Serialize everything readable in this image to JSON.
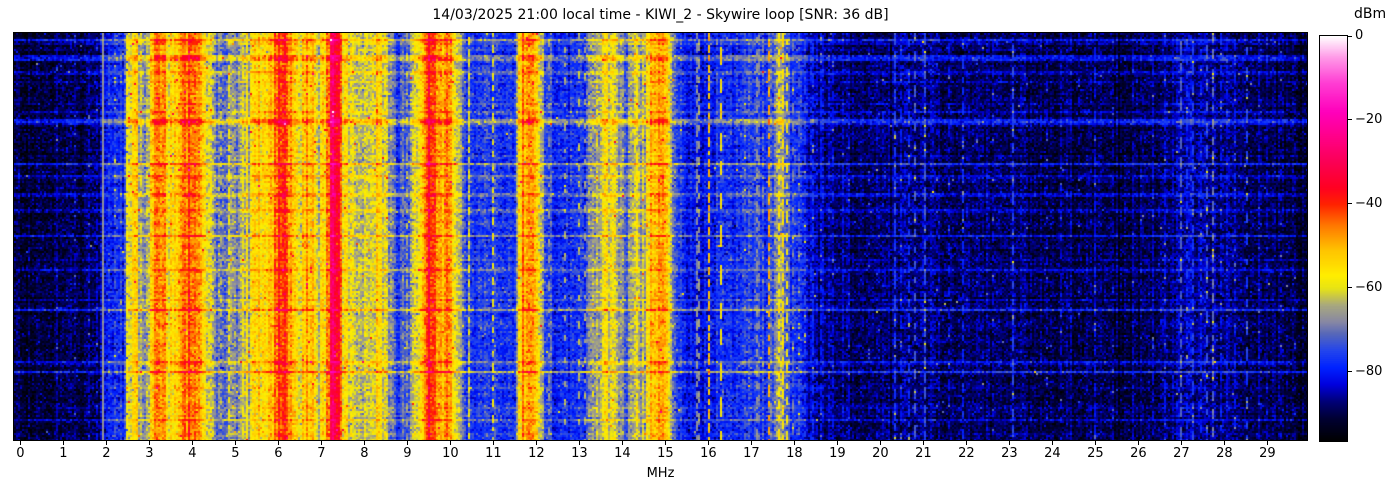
{
  "chart_data": {
    "type": "heatmap",
    "subtype": "radio-spectrogram-waterfall",
    "title": "14/03/2025 21:00 local time - KIWI_2 - Skywire loop [SNR: 36 dB]",
    "xlabel": "MHz",
    "x_ticks": [
      0,
      1,
      2,
      3,
      4,
      5,
      6,
      7,
      8,
      9,
      10,
      11,
      12,
      13,
      14,
      15,
      16,
      17,
      18,
      19,
      20,
      21,
      22,
      23,
      24,
      25,
      26,
      27,
      28,
      29
    ],
    "x_range": [
      -0.15,
      29.92
    ],
    "y_ticks": [],
    "colorbar": {
      "label": "dBm",
      "ticks": [
        0,
        -20,
        -40,
        -60,
        -80
      ],
      "range": [
        -96.5,
        0
      ]
    },
    "colormap_stops": [
      [
        -96.5,
        "#000000"
      ],
      [
        -91,
        "#000033"
      ],
      [
        -87,
        "#000077"
      ],
      [
        -83,
        "#0000dd"
      ],
      [
        -79,
        "#0022ff"
      ],
      [
        -75,
        "#2244ee"
      ],
      [
        -71,
        "#5566bb"
      ],
      [
        -68,
        "#8888a3"
      ],
      [
        -64,
        "#a8a87e"
      ],
      [
        -60,
        "#e8e414"
      ],
      [
        -57,
        "#ffee00"
      ],
      [
        -51,
        "#ffc400"
      ],
      [
        -45,
        "#ff7700"
      ],
      [
        -40,
        "#ff2200"
      ],
      [
        -36,
        "#ff0022"
      ],
      [
        -30,
        "#fb0055"
      ],
      [
        -24,
        "#ff0088"
      ],
      [
        -18,
        "#ff00bb"
      ],
      [
        -11,
        "#ff3fd4"
      ],
      [
        -5,
        "#ff9ae8"
      ],
      [
        0,
        "#ffffff"
      ]
    ],
    "seed": 20250314,
    "noise": {
      "cell_sigma_db": 3.2,
      "column_sigma_active_db": 2.8,
      "column_sigma_quiet_db": 1.5,
      "row_jitter_sigma_db": 1.2,
      "row_burst_probability": 0.085,
      "row_burst_db": [
        4,
        12
      ],
      "speckle_probability_active": 0.006,
      "speckle_probability_quiet": 0.0015,
      "speckle_db": [
        10,
        24
      ]
    },
    "band_profile": [
      [
        0.0,
        -90
      ],
      [
        0.3,
        -91
      ],
      [
        0.8,
        -90
      ],
      [
        1.4,
        -90
      ],
      [
        1.75,
        -89
      ],
      [
        1.88,
        -84
      ],
      [
        1.95,
        -80
      ],
      [
        2.1,
        -79
      ],
      [
        2.4,
        -78
      ],
      [
        2.5,
        -62
      ],
      [
        2.58,
        -57
      ],
      [
        2.7,
        -54
      ],
      [
        2.8,
        -64
      ],
      [
        2.9,
        -70
      ],
      [
        3.0,
        -58
      ],
      [
        3.08,
        -52
      ],
      [
        3.18,
        -44
      ],
      [
        3.3,
        -48
      ],
      [
        3.42,
        -54
      ],
      [
        3.55,
        -57
      ],
      [
        3.65,
        -50
      ],
      [
        3.75,
        -47
      ],
      [
        3.88,
        -42
      ],
      [
        4.0,
        -45
      ],
      [
        4.1,
        -43
      ],
      [
        4.22,
        -52
      ],
      [
        4.35,
        -60
      ],
      [
        4.5,
        -70
      ],
      [
        4.7,
        -72
      ],
      [
        4.9,
        -68
      ],
      [
        5.05,
        -70
      ],
      [
        5.18,
        -60
      ],
      [
        5.35,
        -57
      ],
      [
        5.55,
        -56
      ],
      [
        5.75,
        -56
      ],
      [
        5.9,
        -48
      ],
      [
        6.0,
        -39
      ],
      [
        6.12,
        -40
      ],
      [
        6.22,
        -47
      ],
      [
        6.35,
        -50
      ],
      [
        6.5,
        -58
      ],
      [
        6.65,
        -55
      ],
      [
        6.8,
        -56
      ],
      [
        6.95,
        -60
      ],
      [
        7.05,
        -56
      ],
      [
        7.15,
        -46
      ],
      [
        7.22,
        -34
      ],
      [
        7.32,
        -31
      ],
      [
        7.42,
        -40
      ],
      [
        7.5,
        -52
      ],
      [
        7.6,
        -60
      ],
      [
        7.72,
        -58
      ],
      [
        7.85,
        -62
      ],
      [
        8.0,
        -66
      ],
      [
        8.15,
        -60
      ],
      [
        8.3,
        -56
      ],
      [
        8.45,
        -60
      ],
      [
        8.6,
        -70
      ],
      [
        8.75,
        -74
      ],
      [
        8.9,
        -72
      ],
      [
        9.05,
        -70
      ],
      [
        9.18,
        -62
      ],
      [
        9.3,
        -55
      ],
      [
        9.4,
        -45
      ],
      [
        9.5,
        -33
      ],
      [
        9.6,
        -42
      ],
      [
        9.7,
        -44
      ],
      [
        9.8,
        -48
      ],
      [
        9.9,
        -44
      ],
      [
        9.98,
        -50
      ],
      [
        10.08,
        -56
      ],
      [
        10.18,
        -62
      ],
      [
        10.35,
        -74
      ],
      [
        10.6,
        -77
      ],
      [
        10.9,
        -75
      ],
      [
        11.2,
        -78
      ],
      [
        11.45,
        -76
      ],
      [
        11.58,
        -60
      ],
      [
        11.68,
        -48
      ],
      [
        11.8,
        -44
      ],
      [
        11.92,
        -52
      ],
      [
        12.02,
        -56
      ],
      [
        12.15,
        -70
      ],
      [
        12.4,
        -79
      ],
      [
        12.7,
        -78
      ],
      [
        13.0,
        -77
      ],
      [
        13.25,
        -72
      ],
      [
        13.4,
        -64
      ],
      [
        13.55,
        -58
      ],
      [
        13.68,
        -56
      ],
      [
        13.8,
        -60
      ],
      [
        13.95,
        -68
      ],
      [
        14.1,
        -72
      ],
      [
        14.25,
        -62
      ],
      [
        14.4,
        -66
      ],
      [
        14.55,
        -58
      ],
      [
        14.68,
        -50
      ],
      [
        14.8,
        -52
      ],
      [
        14.95,
        -48
      ],
      [
        15.05,
        -56
      ],
      [
        15.2,
        -72
      ],
      [
        15.45,
        -80
      ],
      [
        15.7,
        -82
      ],
      [
        15.95,
        -80
      ],
      [
        16.2,
        -79
      ],
      [
        16.45,
        -78
      ],
      [
        16.7,
        -77
      ],
      [
        16.95,
        -76
      ],
      [
        17.2,
        -77
      ],
      [
        17.42,
        -72
      ],
      [
        17.6,
        -68
      ],
      [
        17.75,
        -70
      ],
      [
        17.95,
        -76
      ],
      [
        18.15,
        -79
      ],
      [
        18.4,
        -84
      ],
      [
        18.7,
        -86
      ],
      [
        19.1,
        -88
      ],
      [
        19.6,
        -89
      ],
      [
        20.1,
        -88
      ],
      [
        20.4,
        -86
      ],
      [
        20.8,
        -88
      ],
      [
        21.2,
        -87
      ],
      [
        21.7,
        -89
      ],
      [
        22.2,
        -88
      ],
      [
        22.7,
        -89
      ],
      [
        23.2,
        -88
      ],
      [
        23.7,
        -90
      ],
      [
        24.2,
        -89
      ],
      [
        24.7,
        -90
      ],
      [
        25.2,
        -90
      ],
      [
        25.7,
        -90
      ],
      [
        26.2,
        -89
      ],
      [
        26.7,
        -87
      ],
      [
        27.0,
        -85
      ],
      [
        27.4,
        -86
      ],
      [
        27.8,
        -86
      ],
      [
        28.3,
        -88
      ],
      [
        28.8,
        -89
      ],
      [
        29.4,
        -90
      ],
      [
        29.92,
        -90
      ]
    ],
    "carriers": [
      [
        0.85,
        -85,
        0.7,
        5
      ],
      [
        1.25,
        -86,
        0.6,
        5
      ],
      [
        1.6,
        -84,
        0.7,
        5
      ],
      [
        1.78,
        -83,
        0.6,
        4
      ],
      [
        1.9,
        -67,
        1.0,
        4
      ],
      [
        2.2,
        -74,
        0.6,
        4
      ],
      [
        2.33,
        -75,
        0.5,
        4
      ],
      [
        2.47,
        -58,
        0.9,
        5
      ],
      [
        2.62,
        -54,
        0.95,
        5
      ],
      [
        2.73,
        -57,
        0.85,
        4
      ],
      [
        4.47,
        -61,
        0.5,
        3
      ],
      [
        4.66,
        -63,
        0.4,
        3
      ],
      [
        4.85,
        -59,
        0.6,
        4
      ],
      [
        6.79,
        -48,
        0.55,
        3
      ],
      [
        7.7,
        -56,
        0.6,
        4
      ],
      [
        8.97,
        -64,
        0.4,
        3
      ],
      [
        10.12,
        -58,
        0.6,
        4
      ],
      [
        10.42,
        -60,
        0.55,
        3
      ],
      [
        11.0,
        -60,
        0.5,
        3
      ],
      [
        12.3,
        -66,
        0.3,
        3
      ],
      [
        12.66,
        -64,
        0.3,
        3
      ],
      [
        12.97,
        -63,
        0.3,
        3
      ],
      [
        13.12,
        -65,
        0.3,
        3
      ],
      [
        14.35,
        -57,
        0.5,
        4
      ],
      [
        15.7,
        -68,
        0.7,
        4
      ],
      [
        15.79,
        -66,
        0.5,
        4
      ],
      [
        15.98,
        -51,
        0.7,
        4
      ],
      [
        16.28,
        -56,
        0.55,
        8
      ],
      [
        16.82,
        -72,
        0.6,
        4
      ],
      [
        17.1,
        -67,
        0.6,
        4
      ],
      [
        17.17,
        -69,
        0.5,
        4
      ],
      [
        17.38,
        -49,
        0.6,
        4
      ],
      [
        17.62,
        -57,
        0.6,
        4
      ],
      [
        17.71,
        -55,
        0.6,
        5
      ],
      [
        17.79,
        -59,
        0.5,
        4
      ],
      [
        17.96,
        -70,
        0.45,
        4
      ],
      [
        18.1,
        -72,
        0.5,
        4
      ],
      [
        18.25,
        -75,
        0.5,
        4
      ],
      [
        18.4,
        -78,
        0.6,
        5
      ],
      [
        18.62,
        -80,
        0.7,
        6
      ],
      [
        18.88,
        -82,
        0.6,
        5
      ],
      [
        19.25,
        -83,
        0.5,
        5
      ],
      [
        19.7,
        -85,
        0.4,
        5
      ],
      [
        20.32,
        -76,
        0.7,
        6
      ],
      [
        20.48,
        -80,
        0.5,
        5
      ],
      [
        20.65,
        -78,
        0.6,
        5
      ],
      [
        20.8,
        -73,
        0.5,
        4
      ],
      [
        21.02,
        -74,
        0.7,
        6
      ],
      [
        21.3,
        -84,
        0.4,
        4
      ],
      [
        21.58,
        -82,
        0.5,
        5
      ],
      [
        21.9,
        -79,
        0.6,
        5
      ],
      [
        22.25,
        -85,
        0.4,
        4
      ],
      [
        22.6,
        -83,
        0.4,
        4
      ],
      [
        23.08,
        -75,
        0.55,
        5
      ],
      [
        23.4,
        -85,
        0.4,
        4
      ],
      [
        23.85,
        -84,
        0.4,
        4
      ],
      [
        24.2,
        -83,
        0.45,
        4
      ],
      [
        24.6,
        -85,
        0.4,
        4
      ],
      [
        24.95,
        -81,
        0.5,
        5
      ],
      [
        25.4,
        -85,
        0.4,
        4
      ],
      [
        25.85,
        -84,
        0.4,
        4
      ],
      [
        26.3,
        -83,
        0.45,
        4
      ],
      [
        26.6,
        -81,
        0.5,
        5
      ],
      [
        26.95,
        -72,
        0.6,
        5
      ],
      [
        27.1,
        -78,
        0.5,
        4
      ],
      [
        27.27,
        -76,
        0.6,
        5
      ],
      [
        27.45,
        -80,
        0.5,
        4
      ],
      [
        27.58,
        -74,
        0.55,
        5
      ],
      [
        27.73,
        -70,
        0.6,
        5
      ],
      [
        27.9,
        -80,
        0.45,
        4
      ],
      [
        28.22,
        -81,
        0.5,
        4
      ],
      [
        28.5,
        -76,
        0.5,
        5
      ],
      [
        28.8,
        -84,
        0.4,
        4
      ],
      [
        29.3,
        -84,
        0.4,
        4
      ],
      [
        29.6,
        -86,
        0.4,
        4
      ]
    ]
  }
}
